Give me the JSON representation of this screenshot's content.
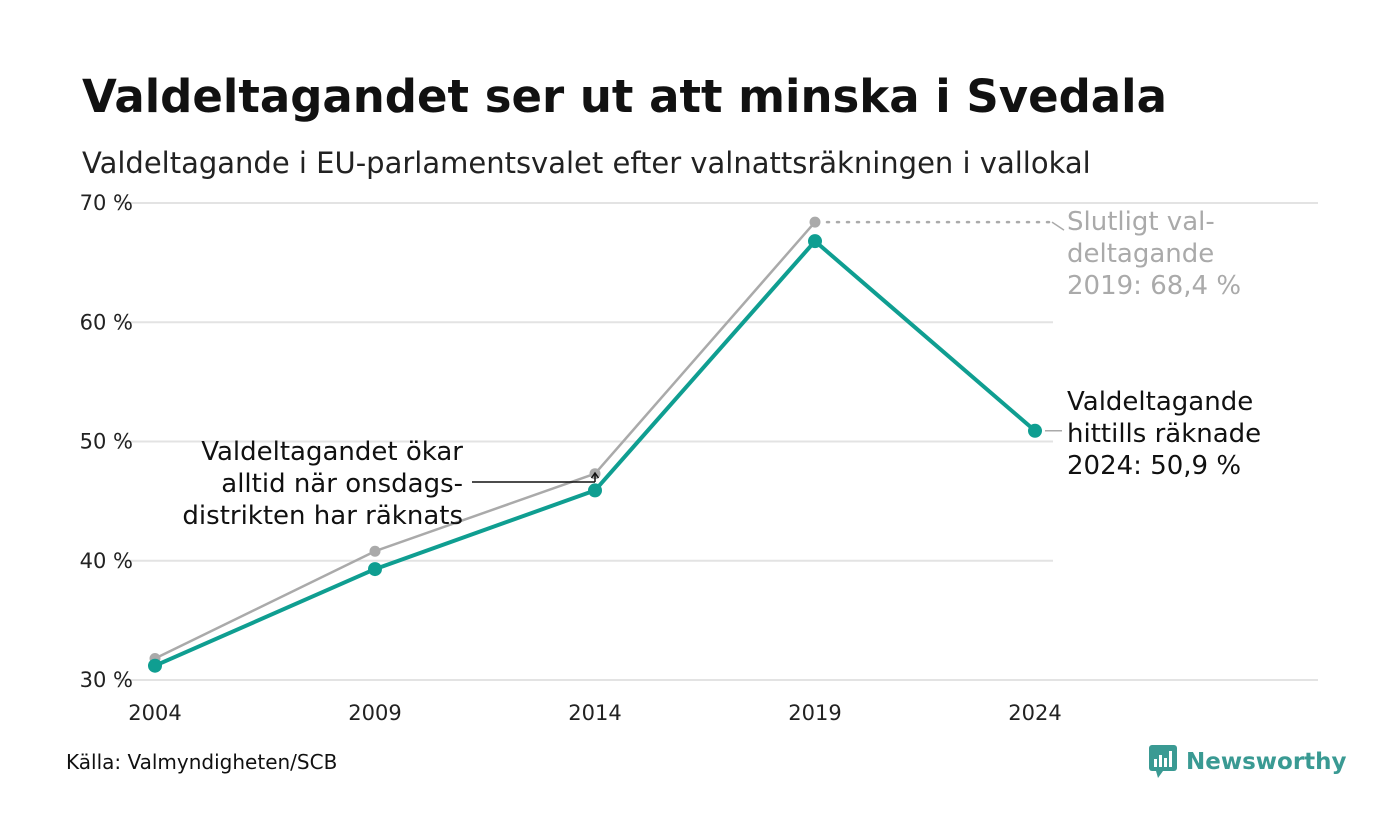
{
  "title": "Valdeltagandet ser ut att minska i Svedala",
  "subtitle": "Valdeltagande i EU-parlamentsvalet efter valnattsräkningen i vallokal",
  "source": "Källa: Valmyndigheten/SCB",
  "brand": "Newsworthy",
  "chart_data": {
    "type": "line",
    "x": [
      2004,
      2009,
      2014,
      2019,
      2024
    ],
    "x_ticks": [
      "2004",
      "2009",
      "2014",
      "2019",
      "2024"
    ],
    "y_ticks": [
      {
        "value": 30,
        "label": "30 %"
      },
      {
        "value": 40,
        "label": "40 %"
      },
      {
        "value": 50,
        "label": "50 %"
      },
      {
        "value": 60,
        "label": "60 %"
      },
      {
        "value": 70,
        "label": "70 %"
      }
    ],
    "ylim": [
      30,
      70
    ],
    "grid": true,
    "series": [
      {
        "key": "final",
        "values": [
          31.8,
          40.8,
          47.3,
          68.4,
          null
        ],
        "color": "#aaaaaa"
      },
      {
        "key": "valnatt",
        "values": [
          31.2,
          39.3,
          45.9,
          66.8,
          50.9
        ],
        "color": "#0f9e91"
      }
    ],
    "annotations": [
      {
        "key": "final-2019",
        "lines": [
          "Slutligt val-",
          "deltagande",
          "2019: 68,4 %"
        ],
        "color": "#aaaaaa"
      },
      {
        "key": "current-2024",
        "lines": [
          "Valdeltagande",
          "hittills räknade",
          "2024: 50,9 %"
        ],
        "color": "#111111"
      },
      {
        "key": "increase-note",
        "lines": [
          "Valdeltagandet ökar",
          "alltid när onsdags-",
          "distrikten har räknats"
        ],
        "color": "#111111"
      }
    ]
  },
  "colors": {
    "accent": "#0f9e91",
    "final": "#aaaaaa",
    "grid": "#e3e3e3",
    "brand": "#3a9a93"
  },
  "icons": {
    "brand": "newsworthy-logo-icon"
  }
}
